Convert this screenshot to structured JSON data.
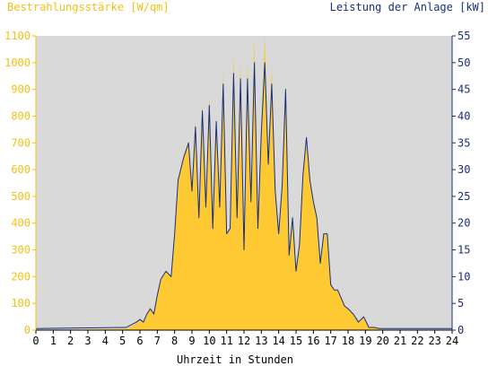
{
  "chart_data": {
    "type": "area",
    "title_left": "Bestrahlungsstärke [W/qm]",
    "title_right": "Leistung der Anlage [kW]",
    "xlabel": "Uhrzeit in Stunden",
    "xlim": [
      0,
      24
    ],
    "x_ticks": [
      "0",
      "1",
      "2",
      "3",
      "4",
      "5",
      "6",
      "7",
      "8",
      "9",
      "10",
      "11",
      "12",
      "13",
      "14",
      "15",
      "16",
      "17",
      "18",
      "19",
      "20",
      "21",
      "22",
      "23",
      "24"
    ],
    "y_left_lim": [
      0,
      1100
    ],
    "y_left_ticks": [
      "0",
      "100",
      "200",
      "300",
      "400",
      "500",
      "600",
      "700",
      "800",
      "900",
      "1000",
      "1100"
    ],
    "y_right_lim": [
      0,
      55
    ],
    "y_right_ticks": [
      "0",
      "5",
      "10",
      "15",
      "20",
      "25",
      "30",
      "35",
      "40",
      "45",
      "50",
      "55"
    ],
    "grid": false,
    "colors": {
      "plot_background": "#d9d9d9",
      "irradiance_fill": "#ffc933",
      "power_line": "#1a2f7a",
      "left_axis": "#f5c016",
      "right_axis": "#1a2f7a"
    },
    "series": [
      {
        "name": "Bestrahlungsstärke [W/qm]",
        "style": "area",
        "axis": "left",
        "x": [
          0,
          5.2,
          5.5,
          5.8,
          6.0,
          6.2,
          6.4,
          6.6,
          6.8,
          7.0,
          7.2,
          7.5,
          7.8,
          8.0,
          8.2,
          8.5,
          8.8,
          9.0,
          9.2,
          9.4,
          9.6,
          9.8,
          10.0,
          10.2,
          10.4,
          10.6,
          10.8,
          11.0,
          11.2,
          11.4,
          11.6,
          11.8,
          12.0,
          12.2,
          12.4,
          12.6,
          12.8,
          13.0,
          13.2,
          13.4,
          13.6,
          13.8,
          14.0,
          14.2,
          14.4,
          14.6,
          14.8,
          15.0,
          15.2,
          15.4,
          15.6,
          15.8,
          16.0,
          16.2,
          16.4,
          16.6,
          16.8,
          17.0,
          17.2,
          17.4,
          17.6,
          17.8,
          18.0,
          18.3,
          18.6,
          18.9,
          19.2,
          19.5,
          19.8,
          20.0,
          20.3,
          20.6,
          21.0,
          24
        ],
        "y": [
          0,
          5,
          15,
          25,
          40,
          30,
          55,
          80,
          60,
          130,
          190,
          220,
          200,
          360,
          560,
          650,
          700,
          530,
          780,
          420,
          850,
          470,
          880,
          380,
          800,
          470,
          970,
          360,
          380,
          1030,
          420,
          1000,
          300,
          1000,
          480,
          1100,
          380,
          750,
          1100,
          620,
          980,
          520,
          360,
          540,
          920,
          280,
          430,
          220,
          320,
          590,
          690,
          570,
          480,
          420,
          250,
          360,
          360,
          170,
          150,
          150,
          120,
          90,
          80,
          60,
          30,
          50,
          10,
          10,
          5,
          0,
          0,
          0,
          0,
          0
        ]
      },
      {
        "name": "Leistung der Anlage [kW]",
        "style": "line",
        "axis": "right",
        "x": [
          0,
          5.2,
          5.5,
          5.8,
          6.0,
          6.2,
          6.4,
          6.6,
          6.8,
          7.0,
          7.2,
          7.5,
          7.8,
          8.0,
          8.2,
          8.5,
          8.8,
          9.0,
          9.2,
          9.4,
          9.6,
          9.8,
          10.0,
          10.2,
          10.4,
          10.6,
          10.8,
          11.0,
          11.2,
          11.4,
          11.6,
          11.8,
          12.0,
          12.2,
          12.4,
          12.6,
          12.8,
          13.0,
          13.2,
          13.4,
          13.6,
          13.8,
          14.0,
          14.2,
          14.4,
          14.6,
          14.8,
          15.0,
          15.2,
          15.4,
          15.6,
          15.8,
          16.0,
          16.2,
          16.4,
          16.6,
          16.8,
          17.0,
          17.2,
          17.4,
          17.6,
          17.8,
          18.0,
          18.3,
          18.6,
          18.9,
          19.2,
          19.5,
          19.8,
          20.0,
          20.3,
          20.6,
          21.0,
          24
        ],
        "y": [
          0.3,
          0.5,
          1,
          1.5,
          2,
          1.5,
          3,
          4,
          3,
          6.5,
          9.5,
          11,
          10,
          18,
          28,
          32,
          35,
          26,
          38,
          21,
          41,
          23,
          42,
          19,
          39,
          23,
          46,
          18,
          19,
          48,
          21,
          47,
          15,
          47,
          24,
          50,
          19,
          37,
          50,
          31,
          46,
          26,
          18,
          27,
          45,
          14,
          21,
          11,
          16,
          29,
          36,
          28,
          24,
          21,
          12.5,
          18,
          18,
          8.5,
          7.5,
          7.5,
          6,
          4.5,
          4,
          3,
          1.5,
          2.5,
          0.5,
          0.5,
          0.3,
          0.3,
          0.3,
          0.3,
          0.3,
          0.3
        ]
      }
    ]
  }
}
